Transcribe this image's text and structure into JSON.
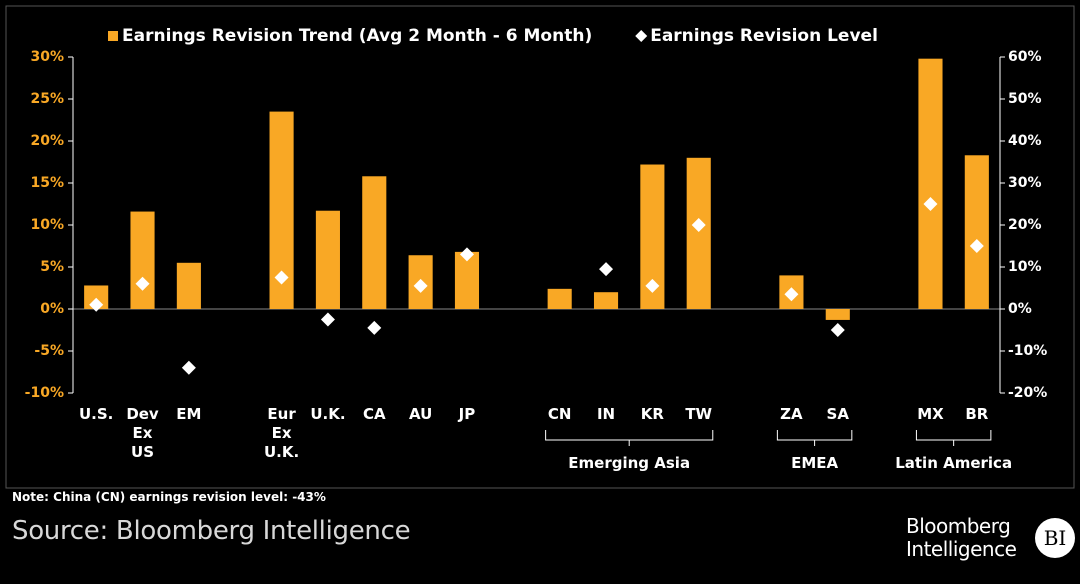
{
  "chart_data": {
    "type": "bar",
    "categories": [
      "U.S.",
      "Dev\nEx\nUS",
      "EM",
      null,
      "Eur\nEx\nU.K.",
      "U.K.",
      "CA",
      "AU",
      "JP",
      null,
      "CN",
      "IN",
      "KR",
      "TW",
      null,
      "ZA",
      "SA",
      null,
      "MX",
      "BR"
    ],
    "series": [
      {
        "name": "Earnings Revision Trend (Avg 2 Month - 6 Month)",
        "color": "#f9a825",
        "type": "bar",
        "values": [
          2.8,
          11.6,
          5.5,
          null,
          23.5,
          11.7,
          15.8,
          6.4,
          6.8,
          null,
          2.4,
          2.0,
          17.2,
          18.0,
          null,
          4.0,
          -1.3,
          null,
          29.8,
          18.3
        ]
      },
      {
        "name": "Earnings Revision Level",
        "color": "#ffffff",
        "type": "scatter",
        "axis": "y2",
        "values": [
          1,
          6,
          -14,
          null,
          7.5,
          -2.5,
          -4.5,
          5.5,
          13,
          null,
          null,
          9.5,
          5.5,
          20,
          null,
          3.5,
          -5,
          null,
          25,
          15
        ]
      }
    ],
    "ylim": [
      -10,
      30
    ],
    "yticks": [
      {
        "value": -10,
        "label": "-10%"
      },
      {
        "value": -5,
        "label": "-5%"
      },
      {
        "value": 0,
        "label": "0%"
      },
      {
        "value": 5,
        "label": "5%"
      },
      {
        "value": 10,
        "label": "10%"
      },
      {
        "value": 15,
        "label": "15%"
      },
      {
        "value": 20,
        "label": "20%"
      },
      {
        "value": 25,
        "label": "25%"
      },
      {
        "value": 30,
        "label": "30%"
      }
    ],
    "y2lim": [
      -20,
      60
    ],
    "y2ticks": [
      {
        "value": -20,
        "label": "-20%"
      },
      {
        "value": -10,
        "label": "-10%"
      },
      {
        "value": 0,
        "label": "0%"
      },
      {
        "value": 10,
        "label": "10%"
      },
      {
        "value": 20,
        "label": "20%"
      },
      {
        "value": 30,
        "label": "30%"
      },
      {
        "value": 40,
        "label": "40%"
      },
      {
        "value": 50,
        "label": "50%"
      },
      {
        "value": 60,
        "label": "60%"
      }
    ],
    "groups": [
      {
        "label": "Emerging Asia",
        "categories": [
          "CN",
          "IN",
          "KR",
          "TW"
        ]
      },
      {
        "label": "EMEA",
        "categories": [
          "ZA",
          "SA"
        ]
      },
      {
        "label": "Latin America",
        "categories": [
          "MX",
          "BR"
        ]
      }
    ],
    "legend": "top",
    "note": "Note: China (CN) earnings revision level: -43%",
    "source": "Source: Bloomberg Intelligence"
  },
  "logo": {
    "text": "Bloomberg Intelligence",
    "mark": "BI"
  }
}
